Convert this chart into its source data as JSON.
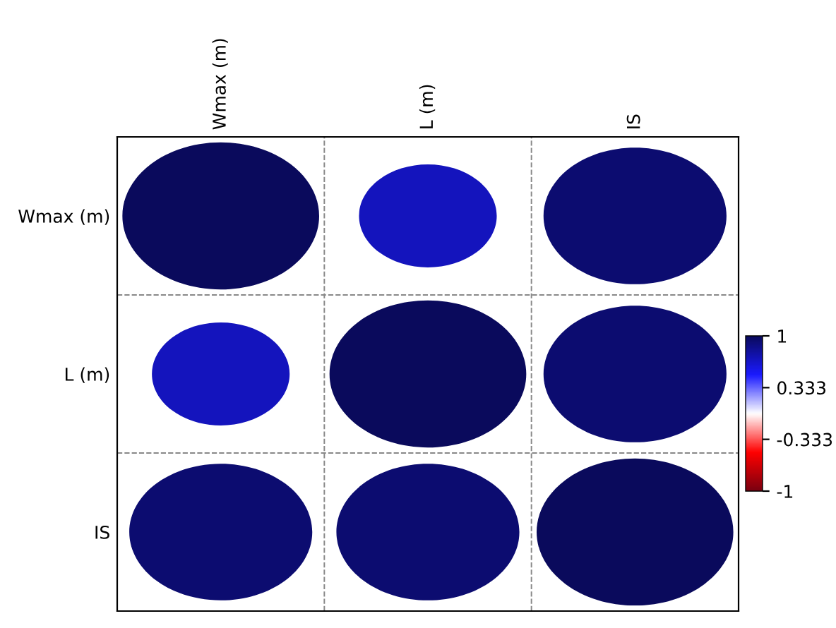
{
  "chart_data": {
    "type": "heatmap",
    "categories": [
      "Wmax (m)",
      "L (m)",
      "IS"
    ],
    "y_categories": [
      "Wmax (m)",
      "L (m)",
      "IS"
    ],
    "cells": [
      [
        1,
        0.7,
        0.93
      ],
      [
        0.7,
        1,
        0.93
      ],
      [
        0.93,
        0.93,
        1
      ]
    ],
    "clim": [
      -1,
      1
    ],
    "cticks": [
      1,
      0.333,
      -0.333,
      -1
    ],
    "grid": true
  }
}
